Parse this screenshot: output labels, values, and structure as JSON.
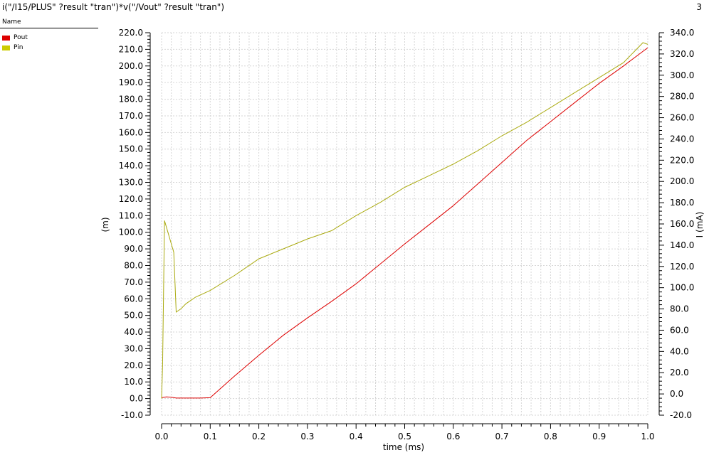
{
  "window": {
    "expression": "i(\"/I15/PLUS\" ?result \"tran\")*v(\"/Vout\" ?result \"tran\")",
    "panel_count": "3"
  },
  "legend": {
    "header": "Name",
    "items": [
      {
        "label": "Pout",
        "color": "#dd0000"
      },
      {
        "label": "Pin",
        "color": "#cccc00"
      }
    ]
  },
  "chart_data": {
    "type": "line",
    "title": "",
    "xlabel": "time (ms)",
    "ylabel_left": "(m)",
    "ylabel_right": "I (mA)",
    "xlim": [
      0.0,
      1.0
    ],
    "ylim_left": [
      -10.0,
      220.0
    ],
    "ylim_right": [
      -20.0,
      340.0
    ],
    "x_ticks": [
      "0.0",
      "0.1",
      "0.2",
      "0.3",
      "0.4",
      "0.5",
      "0.6",
      "0.7",
      "0.8",
      "0.9",
      "1.0"
    ],
    "y_ticks_left": [
      "-10.0",
      "0.0",
      "10.0",
      "20.0",
      "30.0",
      "40.0",
      "50.0",
      "60.0",
      "70.0",
      "80.0",
      "90.0",
      "100.0",
      "110.0",
      "120.0",
      "130.0",
      "140.0",
      "150.0",
      "160.0",
      "170.0",
      "180.0",
      "190.0",
      "200.0",
      "210.0",
      "220.0"
    ],
    "y_ticks_right": [
      "-20.0",
      "0.0",
      "20.0",
      "40.0",
      "60.0",
      "80.0",
      "100.0",
      "120.0",
      "140.0",
      "160.0",
      "180.0",
      "200.0",
      "220.0",
      "240.0",
      "260.0",
      "280.0",
      "300.0",
      "320.0",
      "340.0"
    ],
    "grid": true,
    "series": [
      {
        "name": "Pout",
        "color": "#dd0000",
        "x": [
          0.0,
          0.01,
          0.02,
          0.03,
          0.05,
          0.08,
          0.1,
          0.15,
          0.2,
          0.25,
          0.3,
          0.35,
          0.4,
          0.45,
          0.5,
          0.55,
          0.6,
          0.65,
          0.7,
          0.75,
          0.8,
          0.85,
          0.9,
          0.95,
          1.0
        ],
        "y": [
          0.5,
          1.0,
          0.8,
          0.3,
          0.3,
          0.3,
          0.5,
          13.5,
          26.0,
          38.0,
          48.5,
          58.5,
          69.0,
          81.0,
          93.0,
          104.5,
          116.0,
          129.0,
          142.0,
          155.0,
          166.5,
          178.0,
          189.5,
          200.0,
          211.0
        ]
      },
      {
        "name": "Pin",
        "color": "#aaaa10",
        "x": [
          0.0,
          0.002,
          0.006,
          0.025,
          0.03,
          0.04,
          0.05,
          0.06,
          0.07,
          0.1,
          0.15,
          0.2,
          0.25,
          0.3,
          0.35,
          0.4,
          0.45,
          0.5,
          0.55,
          0.6,
          0.65,
          0.7,
          0.75,
          0.8,
          0.85,
          0.9,
          0.95,
          0.99,
          1.0
        ],
        "y": [
          0.0,
          20.0,
          107.0,
          88.0,
          52.0,
          54.0,
          57.0,
          59.0,
          61.0,
          65.0,
          74.0,
          84.0,
          90.0,
          96.0,
          101.0,
          110.0,
          118.0,
          127.0,
          134.0,
          141.0,
          149.0,
          158.0,
          166.0,
          175.0,
          184.0,
          193.0,
          202.0,
          214.0,
          213.0
        ]
      }
    ]
  }
}
